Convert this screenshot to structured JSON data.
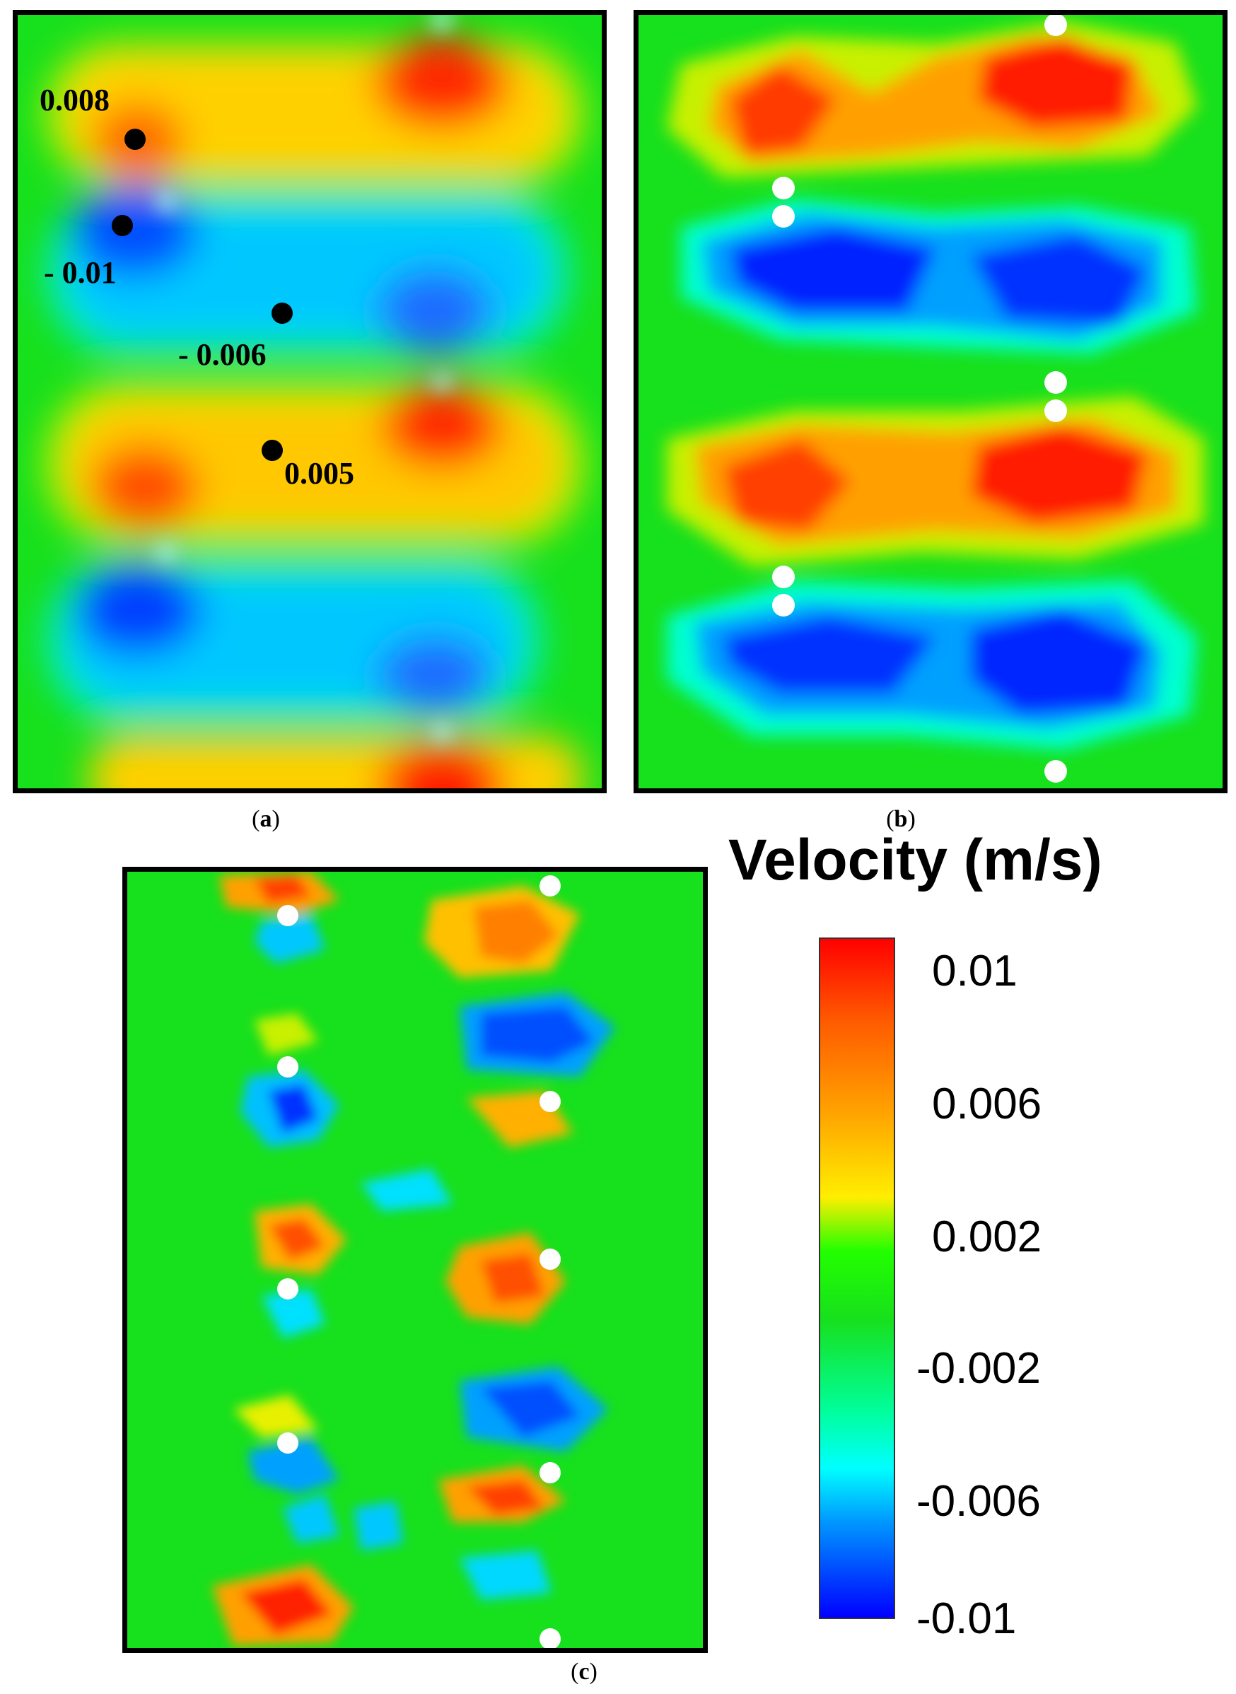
{
  "figure": {
    "panels": [
      {
        "id": "a",
        "caption": "a"
      },
      {
        "id": "b",
        "caption": "b"
      },
      {
        "id": "c",
        "caption": "c"
      }
    ],
    "annotations_a": [
      {
        "label": "0.008"
      },
      {
        "label": "- 0.01"
      },
      {
        "label": "- 0.006"
      },
      {
        "label": "0.005"
      }
    ]
  },
  "legend": {
    "title": "Velocity (m/s)",
    "ticks": [
      "0.01",
      "0.006",
      "0.002",
      "-0.002",
      "-0.006",
      "-0.01"
    ],
    "colors": {
      "max": "#ff0000",
      "mid_high": "#ffa500",
      "mid": "#17e01c",
      "mid_low": "#00ffff",
      "min": "#0000ff"
    }
  }
}
